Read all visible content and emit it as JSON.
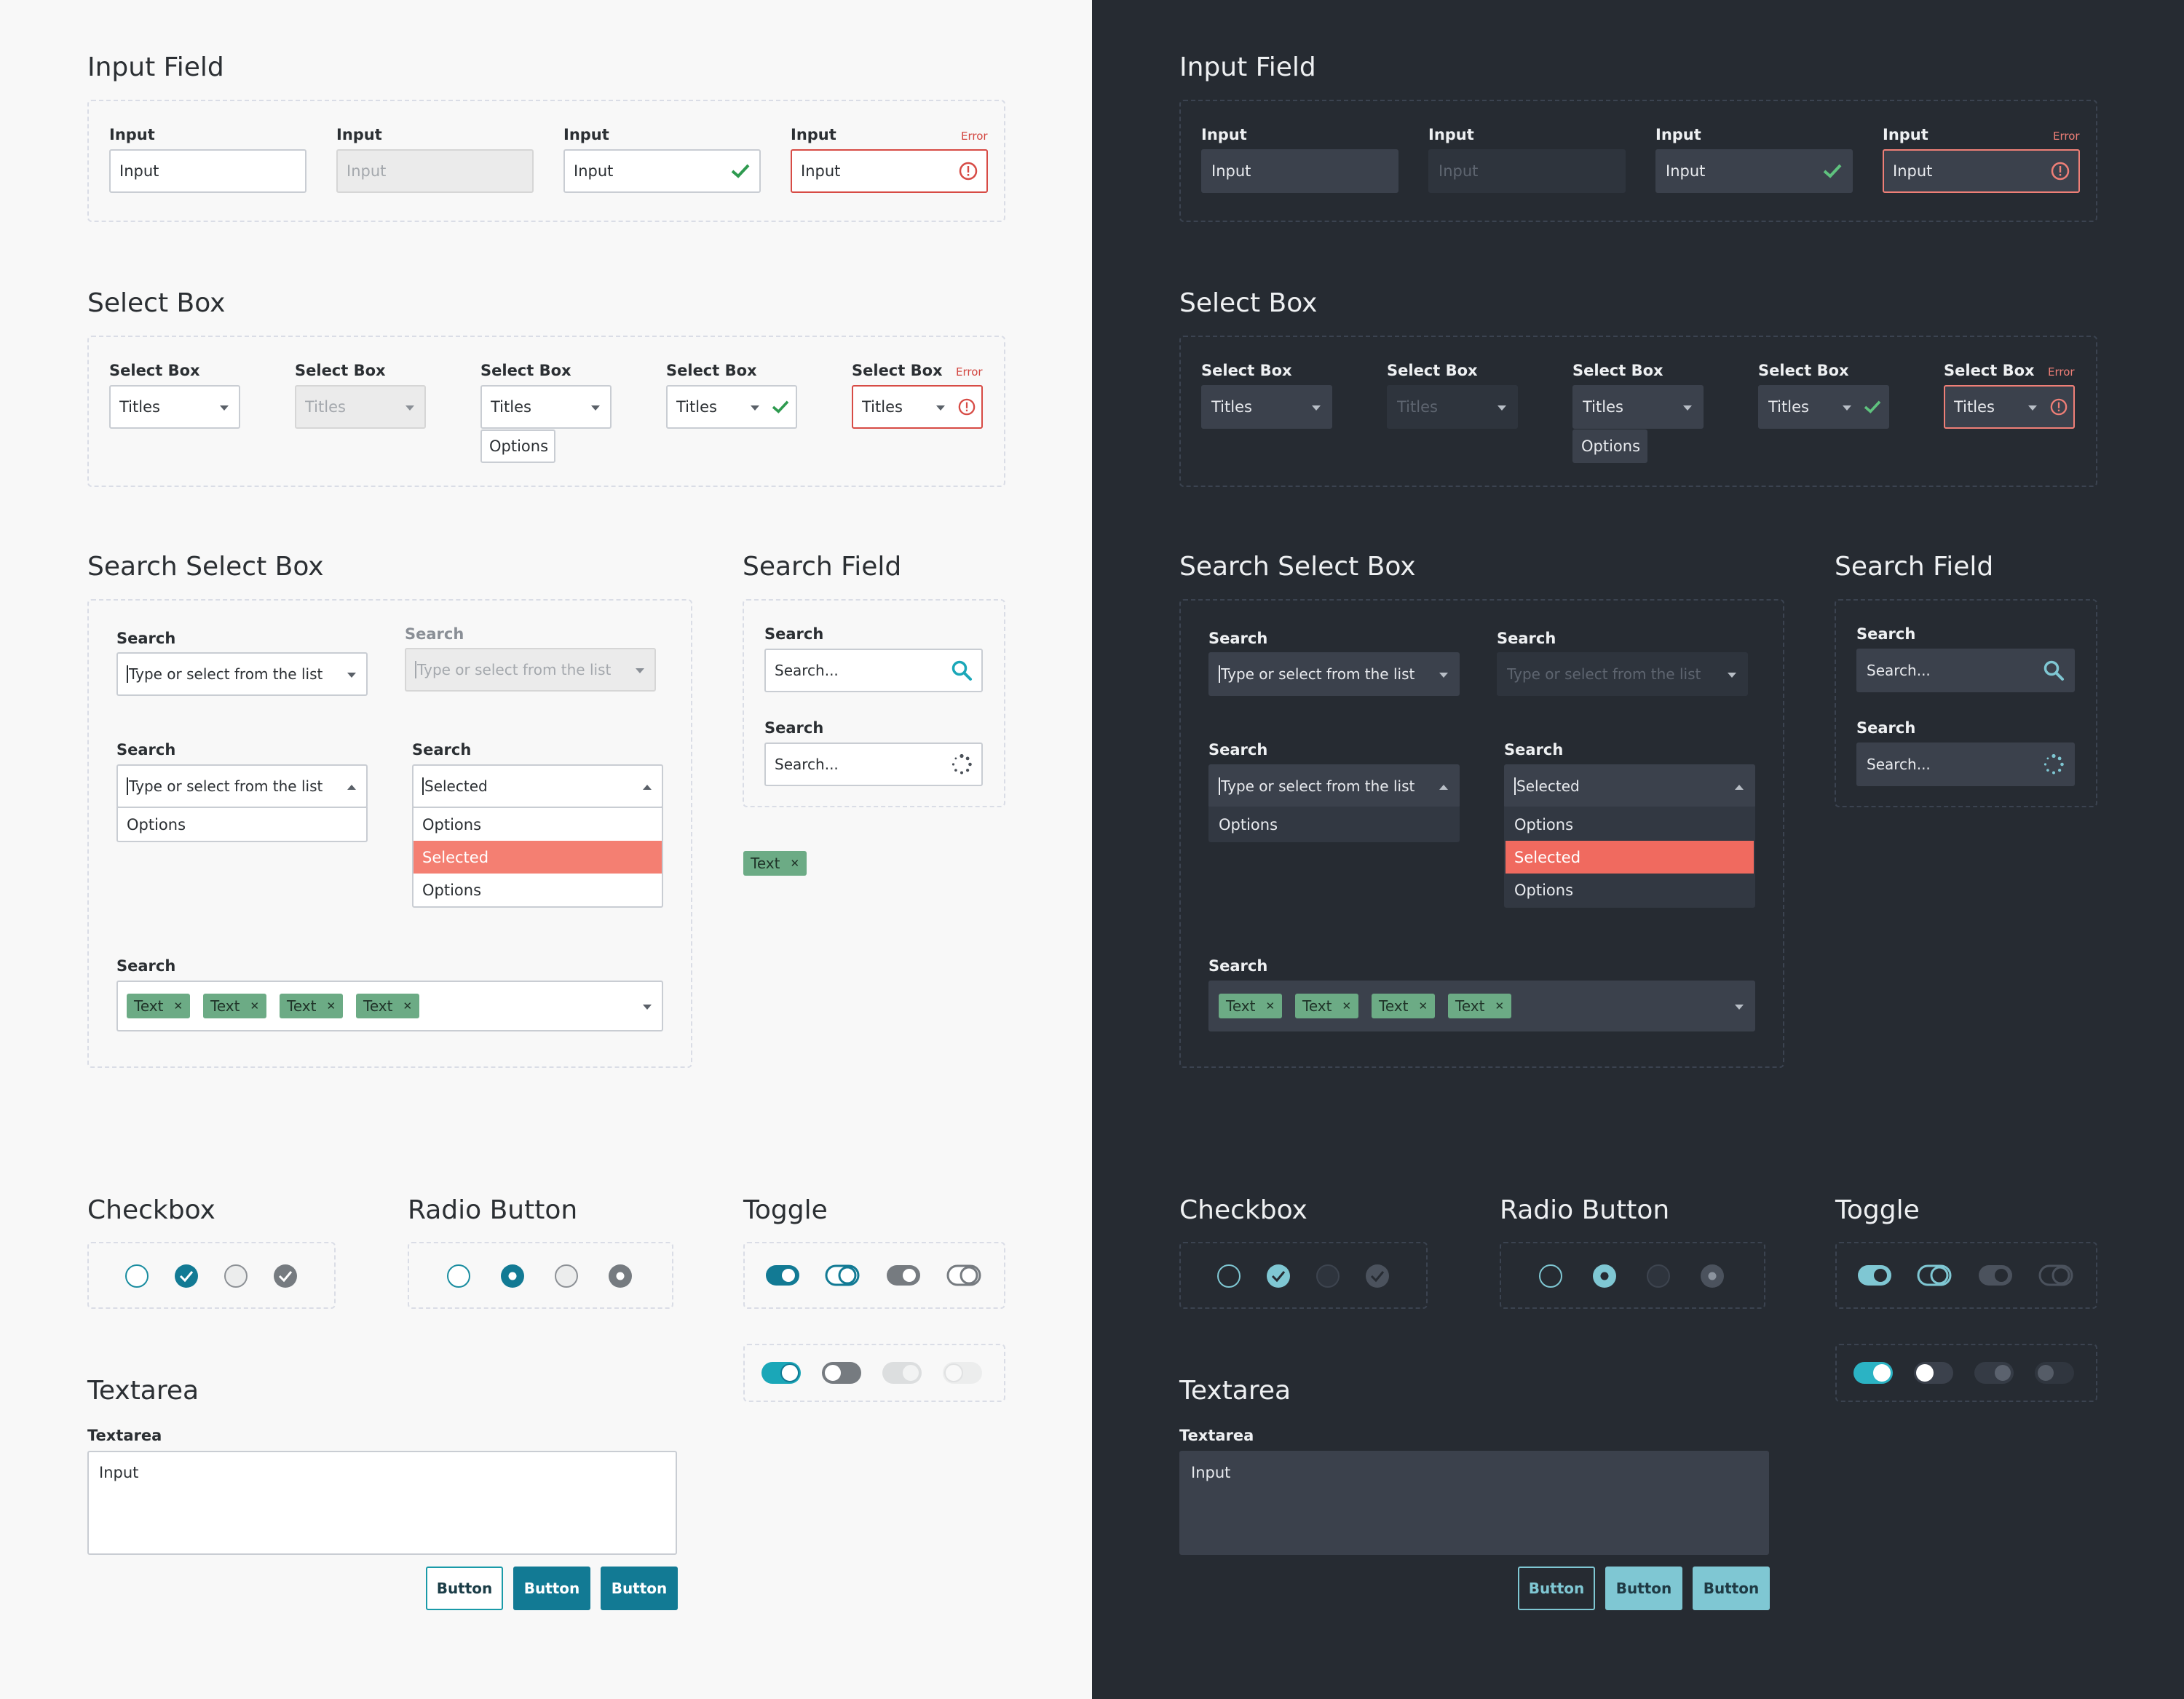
{
  "sections": {
    "input_field": "Input Field",
    "select_box": "Select Box",
    "search_select_box": "Search Select Box",
    "search_field": "Search Field",
    "checkbox": "Checkbox",
    "radio_button": "Radio Button",
    "toggle": "Toggle",
    "textarea": "Textarea"
  },
  "input": {
    "label": "Input",
    "value": "Input",
    "error": "Error"
  },
  "select": {
    "label": "Select Box",
    "value": "Titles",
    "option": "Options",
    "error": "Error"
  },
  "search_select": {
    "label": "Search",
    "placeholder": "Type or select from the list",
    "selected_value": "Selected",
    "options": [
      "Options",
      "Selected",
      "Options"
    ],
    "single_option": "Options",
    "tags": [
      "Text",
      "Text",
      "Text",
      "Text"
    ]
  },
  "search_field": {
    "label": "Search",
    "placeholder": "Search...",
    "tag": "Text"
  },
  "textarea": {
    "label": "Textarea",
    "value": "Input"
  },
  "buttons": [
    "Button",
    "Button",
    "Button"
  ],
  "colors": {
    "primary_light": "#127a94",
    "primary_dark": "#7fc7d3",
    "success": "#2e9a4f",
    "error": "#d74b45",
    "selected": "#f47f72",
    "tag": "#6cab85",
    "dark_bg": "#262b32"
  }
}
